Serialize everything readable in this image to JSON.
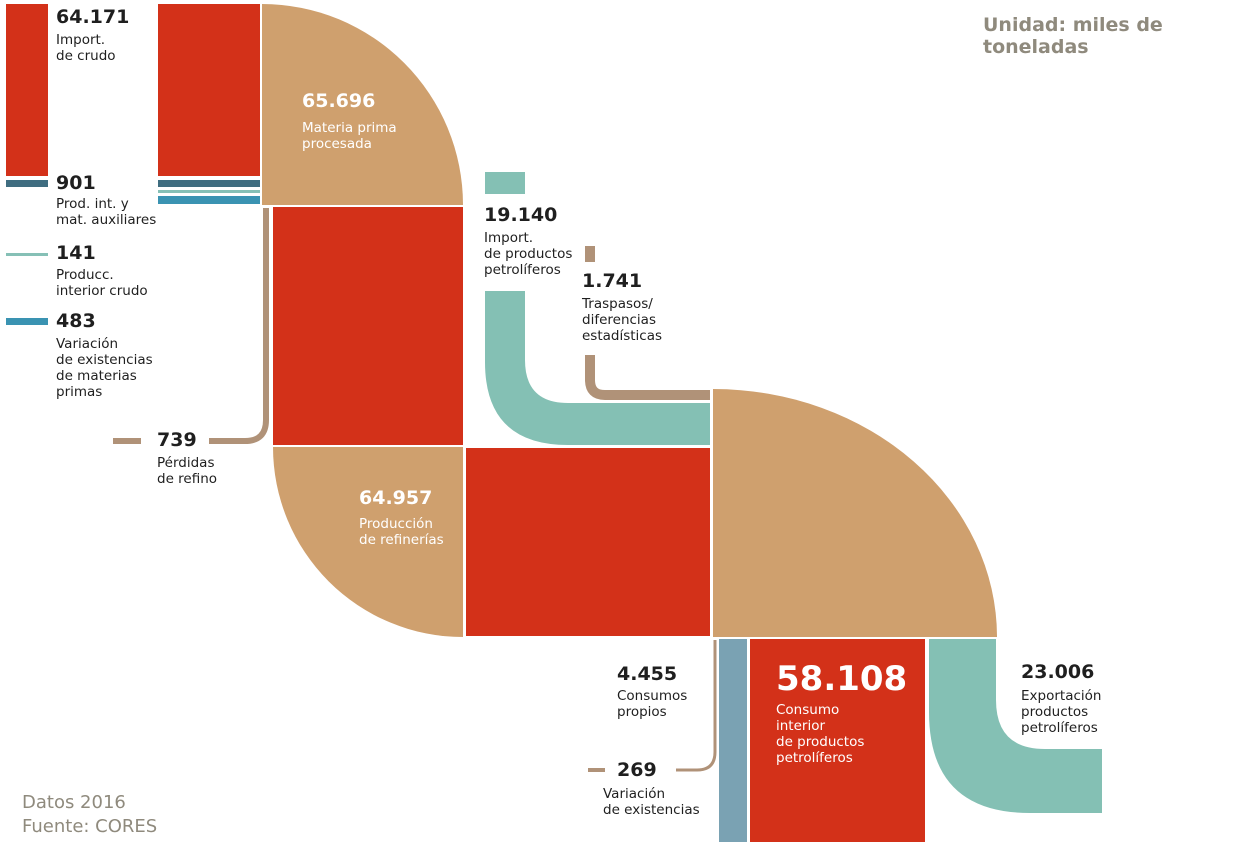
{
  "unit": "Unidad: miles de toneladas",
  "footer": {
    "year": "Datos 2016",
    "source": "Fuente: CORES"
  },
  "colors": {
    "crude": "#d33119",
    "processed": "#cfa06e",
    "intermediate": "#3f6d80",
    "domestic_crude": "#86c0b6",
    "stock_raw": "#3a93b2",
    "imports_products": "#84c0b4",
    "losses": "#b09278",
    "own_consumption": "#7aa2b3"
  },
  "nodes": {
    "crude_imports": {
      "value": "64.171",
      "label": "Import.\nde crudo"
    },
    "intermediate": {
      "value": "901",
      "label": "Prod. int. y\nmat. auxiliares"
    },
    "domestic_crude": {
      "value": "141",
      "label": "Producc.\ninterior crudo"
    },
    "stock_variation_raw": {
      "value": "483",
      "label": "Variación\nde existencias\nde materias\nprimas"
    },
    "raw_processed": {
      "value": "65.696",
      "label": "Materia prima\nprocesada"
    },
    "refinery_losses": {
      "value": "739",
      "label": "Pérdidas\nde refino"
    },
    "refinery_output": {
      "value": "64.957",
      "label": "Producción\nde refinerías"
    },
    "product_imports": {
      "value": "19.140",
      "label": "Import.\nde productos\npetrolíferos"
    },
    "transfers": {
      "value": "1.741",
      "label": "Traspasos/\ndiferencias\nestadísticas"
    },
    "own_consumption": {
      "value": "4.455",
      "label": "Consumos\npropios"
    },
    "stock_variation": {
      "value": "269",
      "label": "Variación\nde existencias"
    },
    "domestic_consumption": {
      "value": "58.108",
      "label": "Consumo\ninterior\nde productos\npetrolíferos"
    },
    "exports": {
      "value": "23.006",
      "label": "Exportación\nproductos\npetrolíferos"
    }
  }
}
